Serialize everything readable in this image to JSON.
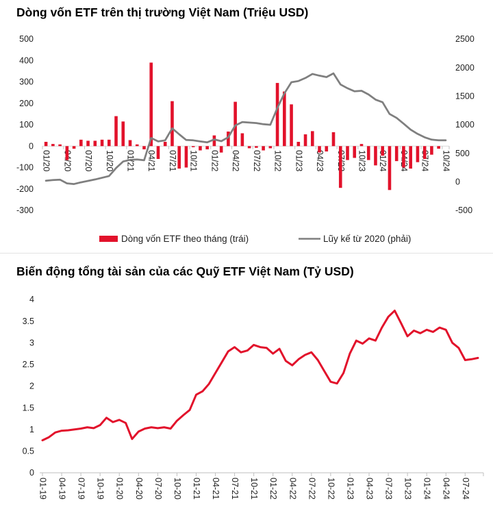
{
  "chart_data": [
    {
      "type": "bar+line",
      "title": "Dòng vốn ETF trên thị trường Việt Nam (Triệu USD)",
      "x_tick_labels": [
        "01/20",
        "04/20",
        "07/20",
        "10/20",
        "01/21",
        "04/21",
        "07/21",
        "10/21",
        "01/22",
        "04/22",
        "07/22",
        "10/22",
        "01/23",
        "04/23",
        "07/23",
        "10/23",
        "01/24",
        "04/24",
        "07/24",
        "10/24"
      ],
      "months_per_tick": 3,
      "left_axis": {
        "min": -300,
        "max": 500,
        "ticks": [
          "500",
          "400",
          "300",
          "200",
          "100",
          "0",
          "-100",
          "-200",
          "-300"
        ]
      },
      "right_axis": {
        "min": -500,
        "max": 2500,
        "ticks": [
          "2500",
          "2000",
          "1500",
          "1000",
          "500",
          "0",
          "-500"
        ]
      },
      "series": [
        {
          "name": "Dòng vốn ETF theo tháng (trái)",
          "type": "bar",
          "axis": "left",
          "color": "#e2122b",
          "values": [
            20,
            10,
            8,
            -65,
            -12,
            30,
            25,
            25,
            30,
            30,
            140,
            115,
            28,
            8,
            -15,
            390,
            -60,
            20,
            210,
            -105,
            -100,
            -5,
            -20,
            -15,
            50,
            -30,
            68,
            207,
            60,
            -10,
            -8,
            -20,
            -10,
            295,
            255,
            195,
            20,
            55,
            70,
            -30,
            -25,
            65,
            -195,
            -65,
            -55,
            10,
            -65,
            -90,
            -45,
            -205,
            -70,
            -100,
            -105,
            -75,
            -60,
            -40,
            -12,
            0
          ]
        },
        {
          "name": "Lũy kế từ 2020 (phải)",
          "type": "line",
          "axis": "right",
          "color": "#7f7f7f",
          "values": [
            20,
            30,
            38,
            -27,
            -39,
            -9,
            16,
            41,
            71,
            101,
            241,
            356,
            384,
            392,
            377,
            767,
            707,
            727,
            937,
            832,
            732,
            727,
            707,
            692,
            742,
            712,
            780,
            987,
            1047,
            1037,
            1029,
            1009,
            999,
            1294,
            1549,
            1744,
            1764,
            1819,
            1889,
            1859,
            1834,
            1899,
            1704,
            1639,
            1584,
            1594,
            1529,
            1439,
            1394,
            1189,
            1119,
            1019,
            914,
            839,
            779,
            739,
            727,
            727
          ]
        }
      ],
      "legend_position": "bottom"
    },
    {
      "type": "line",
      "title": "Biến động tổng tài sản của các Quỹ ETF Việt Nam (Tỷ USD)",
      "x_tick_labels": [
        "01-19",
        "04-19",
        "07-19",
        "10-19",
        "01-20",
        "04-20",
        "07-20",
        "10-20",
        "01-21",
        "04-21",
        "07-21",
        "10-21",
        "01-22",
        "04-22",
        "07-22",
        "10-22",
        "01-23",
        "04-23",
        "07-23",
        "10-23",
        "01-24",
        "04-24",
        "07-24"
      ],
      "months_per_tick": 3,
      "y_axis": {
        "min": 0,
        "max": 4,
        "ticks": [
          "4",
          "3.5",
          "3",
          "2.5",
          "2",
          "1.5",
          "1",
          "0.5",
          "0"
        ]
      },
      "grid": false,
      "series": [
        {
          "type": "line",
          "color": "#e2122b",
          "values": [
            0.75,
            0.82,
            0.93,
            0.97,
            0.98,
            1.0,
            1.02,
            1.05,
            1.03,
            1.1,
            1.27,
            1.17,
            1.22,
            1.15,
            0.78,
            0.95,
            1.02,
            1.05,
            1.03,
            1.05,
            1.02,
            1.2,
            1.33,
            1.45,
            1.8,
            1.88,
            2.05,
            2.3,
            2.55,
            2.8,
            2.9,
            2.78,
            2.82,
            2.95,
            2.9,
            2.88,
            2.75,
            2.86,
            2.58,
            2.48,
            2.62,
            2.72,
            2.78,
            2.6,
            2.35,
            2.1,
            2.06,
            2.3,
            2.75,
            3.05,
            2.98,
            3.1,
            3.05,
            3.35,
            3.6,
            3.74,
            3.45,
            3.15,
            3.28,
            3.22,
            3.3,
            3.25,
            3.35,
            3.3,
            3.0,
            2.88,
            2.6,
            2.62,
            2.65
          ]
        }
      ]
    }
  ]
}
